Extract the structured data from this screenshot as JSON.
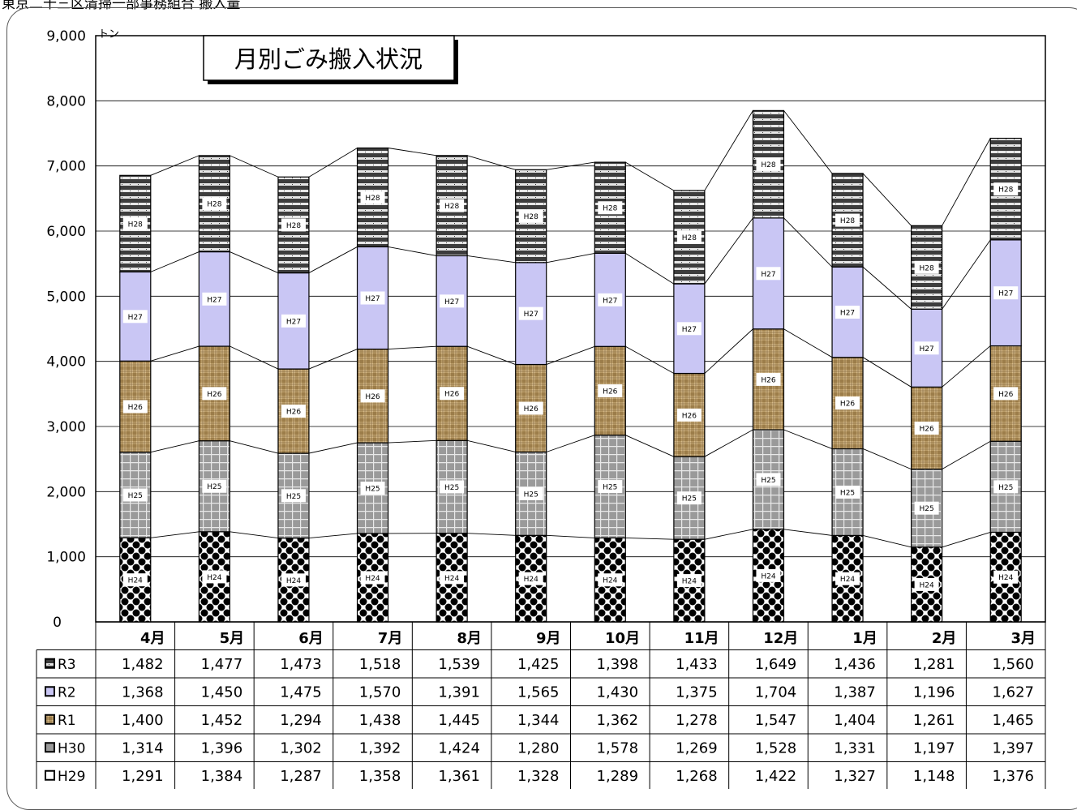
{
  "header_text": "東京二十三区清掃一部事務組合 搬入量",
  "chart_data": {
    "type": "bar",
    "stacked": true,
    "title": "月別ごみ搬入状況",
    "y_unit": "トン",
    "ylim": [
      0,
      9000
    ],
    "y_ticks": [
      "0",
      "1,000",
      "2,000",
      "3,000",
      "4,000",
      "5,000",
      "6,000",
      "7,000",
      "8,000",
      "9,000"
    ],
    "categories": [
      "4月",
      "5月",
      "6月",
      "7月",
      "8月",
      "9月",
      "10月",
      "11月",
      "12月",
      "1月",
      "2月",
      "3月"
    ],
    "grid": true,
    "legend": "table-below",
    "series": [
      {
        "name": "H29",
        "segment_label": "H24",
        "pattern": "diamond-checker",
        "values": [
          1291,
          1384,
          1287,
          1358,
          1361,
          1328,
          1289,
          1268,
          1422,
          1327,
          1148,
          1376
        ]
      },
      {
        "name": "H30",
        "segment_label": "H25",
        "pattern": "grid-gray",
        "values": [
          1314,
          1396,
          1302,
          1392,
          1424,
          1280,
          1578,
          1269,
          1528,
          1331,
          1197,
          1397
        ]
      },
      {
        "name": "R1",
        "segment_label": "H26",
        "pattern": "burlap",
        "values": [
          1400,
          1452,
          1294,
          1438,
          1445,
          1344,
          1362,
          1278,
          1547,
          1404,
          1261,
          1465
        ]
      },
      {
        "name": "R2",
        "segment_label": "H27",
        "pattern": "lavender",
        "values": [
          1368,
          1450,
          1475,
          1570,
          1391,
          1565,
          1430,
          1375,
          1704,
          1387,
          1196,
          1627
        ]
      },
      {
        "name": "R3",
        "segment_label": "H28",
        "pattern": "dark-stripes",
        "values": [
          1482,
          1477,
          1473,
          1518,
          1539,
          1425,
          1398,
          1433,
          1649,
          1436,
          1281,
          1560
        ]
      }
    ],
    "table": {
      "header": [
        "",
        "4月",
        "5月",
        "6月",
        "7月",
        "8月",
        "9月",
        "10月",
        "11月",
        "12月",
        "1月",
        "2月",
        "3月"
      ],
      "rows": [
        {
          "label": "R3",
          "cells": [
            "1,482",
            "1,477",
            "1,473",
            "1,518",
            "1,539",
            "1,425",
            "1,398",
            "1,433",
            "1,649",
            "1,436",
            "1,281",
            "1,560"
          ]
        },
        {
          "label": "R2",
          "cells": [
            "1,368",
            "1,450",
            "1,475",
            "1,570",
            "1,391",
            "1,565",
            "1,430",
            "1,375",
            "1,704",
            "1,387",
            "1,196",
            "1,627"
          ]
        },
        {
          "label": "R1",
          "cells": [
            "1,400",
            "1,452",
            "1,294",
            "1,438",
            "1,445",
            "1,344",
            "1,362",
            "1,278",
            "1,547",
            "1,404",
            "1,261",
            "1,465"
          ]
        },
        {
          "label": "H30",
          "cells": [
            "1,314",
            "1,396",
            "1,302",
            "1,392",
            "1,424",
            "1,280",
            "1,578",
            "1,269",
            "1,528",
            "1,331",
            "1,197",
            "1,397"
          ]
        },
        {
          "label": "H29",
          "cells": [
            "1,291",
            "1,384",
            "1,287",
            "1,358",
            "1,361",
            "1,328",
            "1,289",
            "1,268",
            "1,422",
            "1,327",
            "1,148",
            "1,376"
          ]
        }
      ]
    }
  }
}
